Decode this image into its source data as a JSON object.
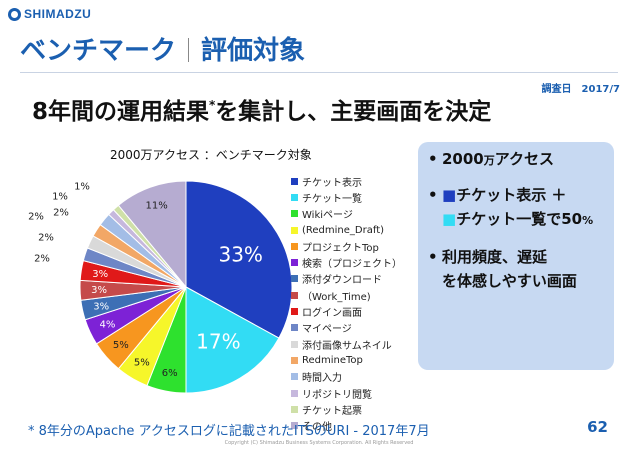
{
  "brand": {
    "logo_text": "SHIMADZU"
  },
  "slide": {
    "title_left": "ベンチマーク",
    "title_right": "評価対象",
    "survey_date": "調査日　2017/7",
    "headline_main": "8年間の運用結果",
    "headline_mark": "*",
    "headline_rest": "を集計し、主要画面を決定",
    "page_number": "62",
    "footnote": "* 8年分のApache アクセスログに記載されたITSのURI - 2017年7月",
    "copyright": "Copyright (C) Shimadzu Business Systems Corporation. All Rights Reserved"
  },
  "callout": {
    "bullet": "•",
    "line1_main": "2000",
    "line1_small": "万",
    "line1_rest": "アクセス",
    "line2_square": "■",
    "line2_text": "チケット表示 ＋",
    "line3_square": "■",
    "line3_main": "チケット一覧で50",
    "line3_small": "%",
    "line4": "利用頻度、遅延",
    "line5": "を体感しやすい画面"
  },
  "chart_data": {
    "type": "pie",
    "title": "2000万アクセス ：ベンチマーク対象",
    "series": [
      {
        "name": "チケット表示",
        "value": 33,
        "label": "33%",
        "color": "#1f3fbf"
      },
      {
        "name": "チケット一覧",
        "value": 17,
        "label": "17%",
        "color": "#32dcf4"
      },
      {
        "name": "Wikiページ",
        "value": 6,
        "label": "6%",
        "color": "#2ee12e"
      },
      {
        "name": "(Redmine_Draft)",
        "value": 5,
        "label": "5%",
        "color": "#f6f62a"
      },
      {
        "name": "プロジェクトTop",
        "value": 5,
        "label": "5%",
        "color": "#f7961f"
      },
      {
        "name": "検索（プロジェクト）",
        "value": 4,
        "label": "4%",
        "color": "#7d22d6"
      },
      {
        "name": "添付ダウンロード",
        "value": 3,
        "label": "3%",
        "color": "#3d6fb5"
      },
      {
        "name": "（Work_Time)",
        "value": 3,
        "label": "3%",
        "color": "#c54a4a"
      },
      {
        "name": "ログイン画面",
        "value": 3,
        "label": "3%",
        "color": "#e01919"
      },
      {
        "name": "マイページ",
        "value": 2,
        "label": "2%",
        "color": "#6e86c6"
      },
      {
        "name": "添付画像サムネイル",
        "value": 2,
        "label": "2%",
        "color": "#d9d9d9"
      },
      {
        "name": "RedmineTop",
        "value": 2,
        "label": "2%",
        "color": "#f2a766"
      },
      {
        "name": "時間入力",
        "value": 2,
        "label": "2%",
        "color": "#a3bde6"
      },
      {
        "name": "リポジトリ閲覧",
        "value": 1,
        "label": "1%",
        "color": "#c6b8dd"
      },
      {
        "name": "チケット起票",
        "value": 1,
        "label": "1%",
        "color": "#cfe0a8"
      },
      {
        "name": "その他",
        "value": 11,
        "label": "11%",
        "color": "#b6acd1"
      }
    ]
  }
}
